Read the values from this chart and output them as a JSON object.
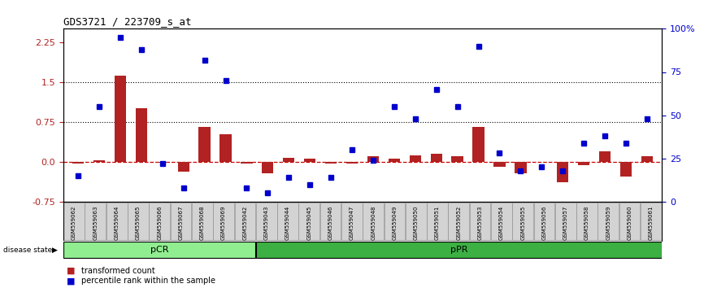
{
  "title": "GDS3721 / 223709_s_at",
  "samples": [
    "GSM559062",
    "GSM559063",
    "GSM559064",
    "GSM559065",
    "GSM559066",
    "GSM559067",
    "GSM559068",
    "GSM559069",
    "GSM559042",
    "GSM559043",
    "GSM559044",
    "GSM559045",
    "GSM559046",
    "GSM559047",
    "GSM559048",
    "GSM559049",
    "GSM559050",
    "GSM559051",
    "GSM559052",
    "GSM559053",
    "GSM559054",
    "GSM559055",
    "GSM559056",
    "GSM559057",
    "GSM559058",
    "GSM559059",
    "GSM559060",
    "GSM559061"
  ],
  "transformed_count": [
    -0.04,
    0.02,
    1.62,
    1.0,
    -0.02,
    -0.18,
    0.65,
    0.52,
    -0.04,
    -0.22,
    0.08,
    0.06,
    -0.04,
    -0.04,
    0.1,
    0.06,
    0.12,
    0.15,
    0.1,
    0.65,
    -0.1,
    -0.22,
    0.0,
    -0.38,
    -0.06,
    0.2,
    -0.28,
    0.1
  ],
  "percentile_rank": [
    15,
    55,
    95,
    88,
    22,
    8,
    82,
    70,
    8,
    5,
    14,
    10,
    14,
    30,
    24,
    55,
    48,
    65,
    55,
    90,
    28,
    18,
    20,
    18,
    34,
    38,
    34,
    48
  ],
  "pcr_count": 9,
  "ppr_count": 19,
  "ylim_left": [
    -0.75,
    2.5
  ],
  "ylim_right": [
    0,
    100
  ],
  "yticks_left": [
    -0.75,
    0.0,
    0.75,
    1.5,
    2.25
  ],
  "yticks_right": [
    0,
    25,
    50,
    75,
    100
  ],
  "ytick_right_labels": [
    "0",
    "25",
    "50",
    "75",
    "100%"
  ],
  "hline_y": [
    0.75,
    1.5
  ],
  "bar_color": "#b22222",
  "dot_color": "#0000cc",
  "dashed_color": "#cc0000",
  "pcr_color": "#90ee90",
  "ppr_color": "#3cb043",
  "sample_box_color": "#d3d3d3"
}
